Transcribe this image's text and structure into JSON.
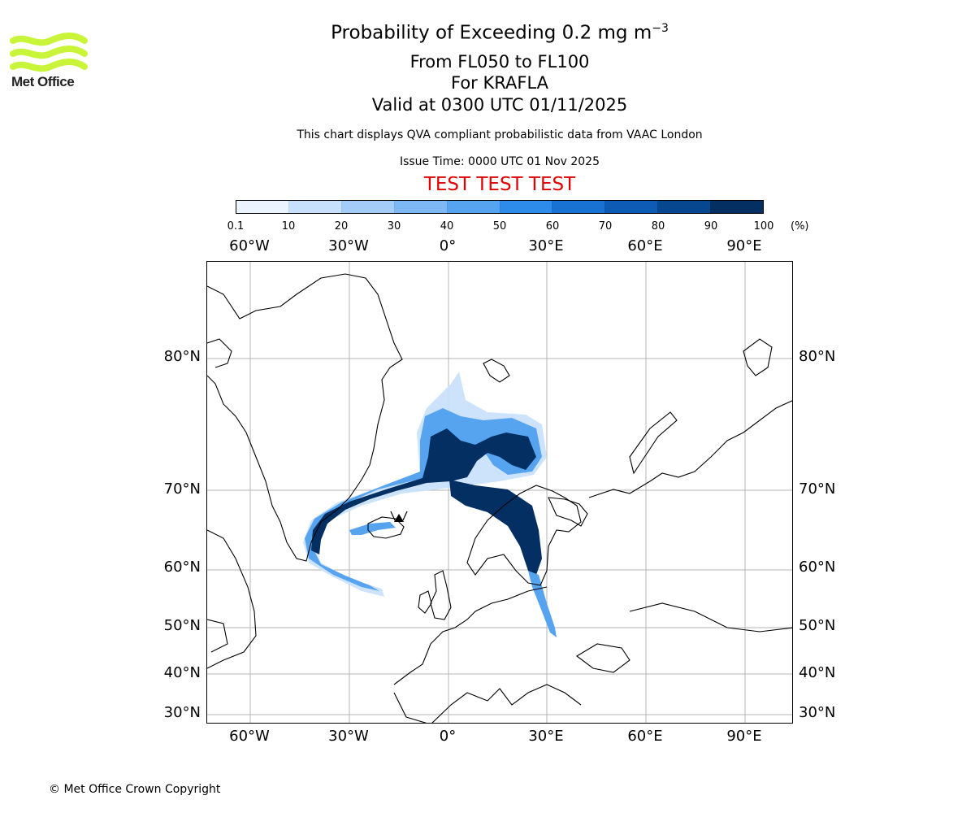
{
  "logo": {
    "text": "Met Office",
    "color": "#c8f53a"
  },
  "header": {
    "title_main": "Probability of Exceeding 0.2 mg m",
    "title_exponent": "−3",
    "level_range": "From FL050 to FL100",
    "volcano": "For KRAFLA",
    "validity": "Valid at 0300 UTC 01/11/2025",
    "source_note": "This chart displays QVA compliant probabilistic data from VAAC London",
    "issue_time": "Issue Time: 0000 UTC 01 Nov 2025",
    "test_banner": "TEST TEST TEST",
    "test_banner_color": "#e00000"
  },
  "colorbar": {
    "ticks": [
      "0.1",
      "10",
      "20",
      "30",
      "40",
      "50",
      "60",
      "70",
      "80",
      "90",
      "100"
    ],
    "unit": "(%)",
    "colors": [
      "#eaf3fe",
      "#c7e0fb",
      "#a3cdf8",
      "#7db8f4",
      "#56a3f0",
      "#2d8ce9",
      "#1872d3",
      "#0d5bb5",
      "#07478f",
      "#032f63"
    ]
  },
  "map": {
    "longitude_labels": [
      "60°W",
      "30°W",
      "0°",
      "30°E",
      "60°E",
      "90°E"
    ],
    "latitude_labels": [
      "80°N",
      "70°N",
      "60°N",
      "50°N",
      "40°N",
      "30°N"
    ],
    "coastline_color": "#000000",
    "gridline_color": "#b4b4b4",
    "ocean_color": "#ffffff",
    "plume_description_colors": {
      "low": "#c7e0fb",
      "mid": "#56a3f0",
      "high": "#032f63"
    },
    "source_marker": "triangle-volcano-symbol"
  },
  "footer": {
    "copyright": "© Met Office Crown Copyright"
  }
}
